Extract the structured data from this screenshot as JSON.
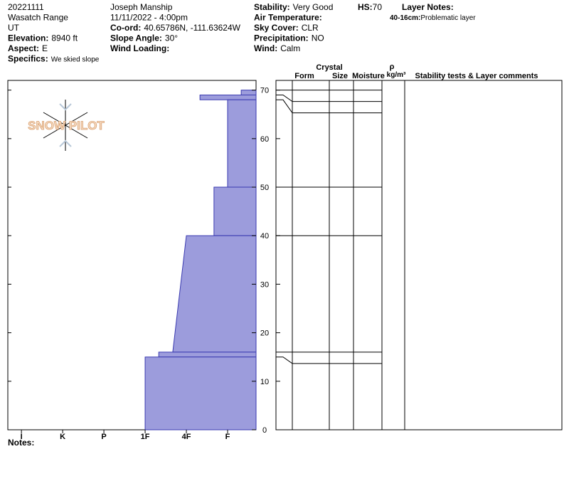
{
  "header": {
    "left": [
      {
        "value": "20221111"
      },
      {
        "value": "Wasatch Range"
      },
      {
        "value": "UT"
      },
      {
        "label": "Elevation:",
        "value": "8940 ft"
      },
      {
        "label": "Aspect:",
        "value": "E"
      },
      {
        "label": "Specifics:",
        "value": "We skied slope"
      }
    ],
    "middle": [
      {
        "value": "Joseph Manship"
      },
      {
        "value": "11/11/2022 - 4:00pm"
      },
      {
        "label": "Co-ord:",
        "value": "40.65786N, -111.63624W"
      },
      {
        "label": "Slope Angle:",
        "value": "30°"
      },
      {
        "label": "Wind Loading:"
      }
    ],
    "right": [
      {
        "label": "Stability:",
        "value": "Very Good"
      },
      {
        "label": "Air Temperature:"
      },
      {
        "label": "Sky Cover:",
        "value": "CLR"
      },
      {
        "label": "Precipitation:",
        "value": "NO"
      },
      {
        "label": "Wind:",
        "value": "Calm"
      }
    ],
    "hs": {
      "label": "HS:",
      "value": 70
    },
    "layer_notes": {
      "title": "Layer Notes:",
      "items": [
        {
          "label": "40-16cm:",
          "value": "Problematic layer"
        }
      ]
    }
  },
  "logo": "SNOW PILOT",
  "notes_label": "Notes:",
  "table": {
    "crystal": "Crystal",
    "columns": [
      "Form",
      "Size",
      "Moisture"
    ],
    "density": "ρ",
    "density_unit": "kg/m³",
    "comments": "Stability tests & Layer comments"
  },
  "chart_data": {
    "type": "hardness-profile",
    "color": "#9c9cdc",
    "layers": [
      {
        "top": 70,
        "bottom": 69,
        "hardness": 0.67
      },
      {
        "top": 69,
        "bottom": 68,
        "hardness": 1.67
      },
      {
        "top": 68,
        "bottom": 50,
        "hardness": 1
      },
      {
        "top": 50,
        "bottom": 40,
        "hardness": 1.33
      },
      {
        "top": 40,
        "bottom": 16,
        "hardness": 2,
        "hardness_bottom": 2.33
      },
      {
        "top": 16,
        "bottom": 15,
        "hardness": 2.67
      },
      {
        "top": 15,
        "bottom": 0,
        "hardness": 3
      }
    ],
    "ylim": [
      0,
      72
    ],
    "yticks": [
      0,
      10,
      20,
      30,
      40,
      50,
      60,
      70
    ],
    "xlim": [
      6.33,
      0.31
    ],
    "xticks": [
      {
        "value": 6,
        "label": "I"
      },
      {
        "value": 5,
        "label": "K"
      },
      {
        "value": 4,
        "label": "P"
      },
      {
        "value": 3,
        "label": "1F"
      },
      {
        "value": 2,
        "label": "4F"
      },
      {
        "value": 1,
        "label": "F"
      }
    ]
  }
}
